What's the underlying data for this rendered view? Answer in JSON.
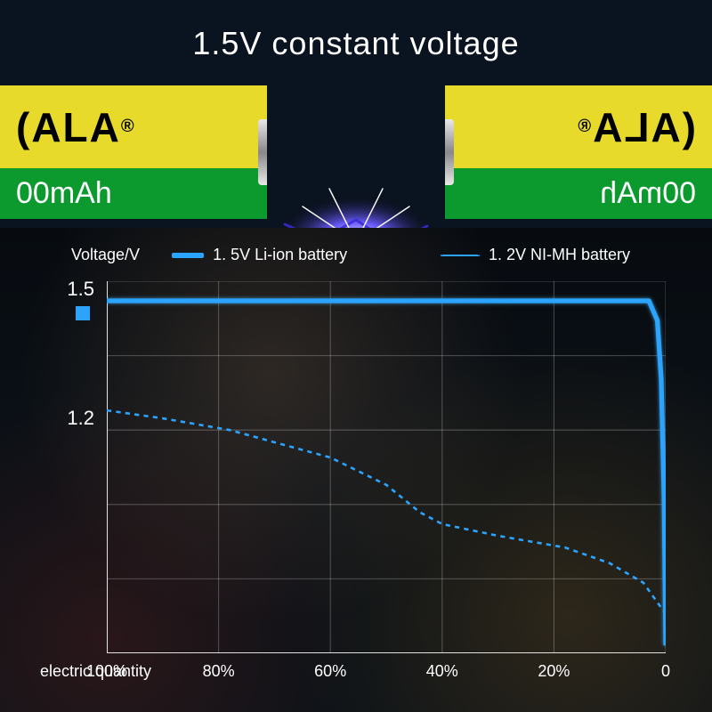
{
  "title": "1.5V  constant voltage",
  "battery": {
    "brand_fragment_left": "(ALA",
    "brand_reg": "®",
    "capacity_fragment_left": "00mAh",
    "brand_fragment_right": "AJA)",
    "capacity_fragment_right": "hAm00",
    "yellow_bg": "#e7da2b",
    "green_bg": "#0c9a2f",
    "brand_text_color": "#000000",
    "capacity_text_color": "#ffffff",
    "cap_color_top": "#e0e0e0",
    "cap_color_mid": "#7a7a7a"
  },
  "spark": {
    "core_color": "#ffffff",
    "glow_color": "#6a5bff",
    "outer_color": "#3a2bd8"
  },
  "chart": {
    "type": "line",
    "y_axis_label": "Voltage/V",
    "x_axis_label": "electric quantity",
    "legend": [
      {
        "label": "1. 5V Li-ion battery",
        "color": "#2aa4ff",
        "style": "solid"
      },
      {
        "label": "1. 2V NI-MH battery",
        "color": "#2aa4ff",
        "style": "dashed"
      }
    ],
    "y_ticks": [
      {
        "value": 1.5,
        "label": "1.5",
        "marker": true
      },
      {
        "value": 1.2,
        "label": "1.2",
        "marker": false
      }
    ],
    "y_range": [
      0.6,
      1.55
    ],
    "x_ticks": [
      {
        "value": 100,
        "label": "100%"
      },
      {
        "value": 80,
        "label": "80%"
      },
      {
        "value": 60,
        "label": "60%"
      },
      {
        "value": 40,
        "label": "40%"
      },
      {
        "value": 20,
        "label": "20%"
      },
      {
        "value": 0,
        "label": "0"
      }
    ],
    "x_range": [
      100,
      0
    ],
    "grid": {
      "cols": 5,
      "rows": 5,
      "color": "rgba(255,255,255,.25)"
    },
    "axis_color": "rgba(255,255,255,.85)",
    "background_color": "transparent",
    "series": {
      "liion": {
        "color": "#2aa4ff",
        "glow_color": "#4fc0ff",
        "stroke_width": 5,
        "points": [
          {
            "x": 100,
            "y": 1.5
          },
          {
            "x": 3,
            "y": 1.5
          },
          {
            "x": 1.5,
            "y": 1.45
          },
          {
            "x": 0.8,
            "y": 1.3
          },
          {
            "x": 0.3,
            "y": 1.0
          },
          {
            "x": 0,
            "y": 0.62
          }
        ]
      },
      "nimh": {
        "color": "#2aa4ff",
        "stroke_width": 2.5,
        "dash": "5 5",
        "points": [
          {
            "x": 100,
            "y": 1.22
          },
          {
            "x": 90,
            "y": 1.2
          },
          {
            "x": 78,
            "y": 1.17
          },
          {
            "x": 60,
            "y": 1.1
          },
          {
            "x": 50,
            "y": 1.03
          },
          {
            "x": 44,
            "y": 0.96
          },
          {
            "x": 40,
            "y": 0.93
          },
          {
            "x": 30,
            "y": 0.9
          },
          {
            "x": 18,
            "y": 0.87
          },
          {
            "x": 10,
            "y": 0.83
          },
          {
            "x": 4,
            "y": 0.78
          },
          {
            "x": 0,
            "y": 0.7
          }
        ]
      }
    },
    "tick_marker_color": "#2aa4ff",
    "text_color": "#ffffff",
    "legend_fontsize": 18,
    "tick_fontsize_y": 22,
    "tick_fontsize_x": 18,
    "title_fontsize": 36
  }
}
